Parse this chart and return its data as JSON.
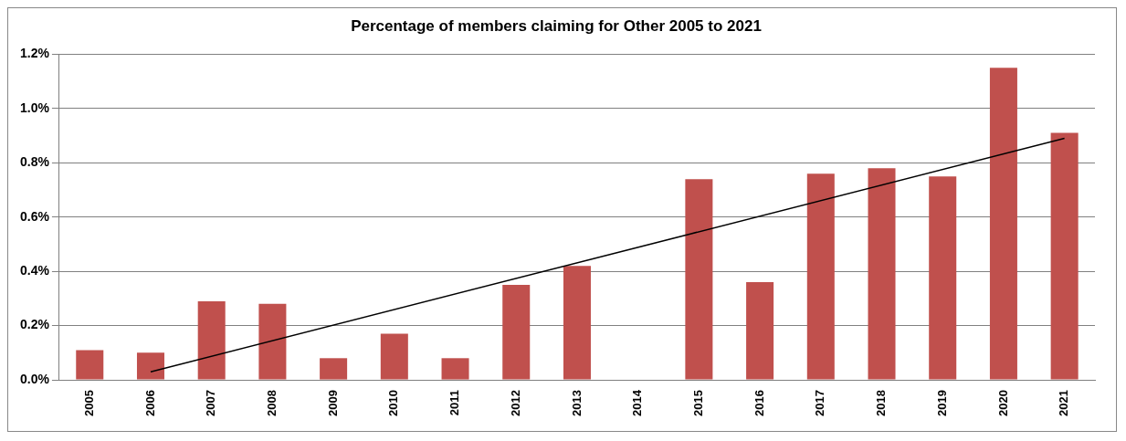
{
  "chart_data": {
    "type": "bar",
    "title": "Percentage of members claiming for Other 2005 to 2021",
    "categories": [
      "2005",
      "2006",
      "2007",
      "2008",
      "2009",
      "2010",
      "2011",
      "2012",
      "2013",
      "2014",
      "2015",
      "2016",
      "2017",
      "2018",
      "2019",
      "2020",
      "2021"
    ],
    "series": [
      {
        "color": "#c0504d",
        "values": [
          0.11,
          0.1,
          0.29,
          0.28,
          0.08,
          0.17,
          0.08,
          0.35,
          0.42,
          0,
          0.74,
          0.36,
          0.76,
          0.78,
          0.75,
          1.15,
          0.91
        ]
      },
      {
        "type": "line",
        "color": "#000000",
        "values": [
          null,
          0.03,
          null,
          null,
          null,
          null,
          null,
          null,
          null,
          null,
          null,
          null,
          null,
          null,
          null,
          null,
          0.89
        ]
      }
    ],
    "ylim": [
      0,
      1.2
    ],
    "yticks": [
      {
        "value": 0,
        "label": "0.0%"
      },
      {
        "value": 0.2,
        "label": "0.2%"
      },
      {
        "value": 0.4,
        "label": "0.4%"
      },
      {
        "value": 0.6,
        "label": "0.6%"
      },
      {
        "value": 0.8,
        "label": "0.8%"
      },
      {
        "value": 1.0,
        "label": "1.0%"
      },
      {
        "value": 1.2,
        "label": "1.2%"
      }
    ],
    "grid": "y",
    "legend": false
  }
}
